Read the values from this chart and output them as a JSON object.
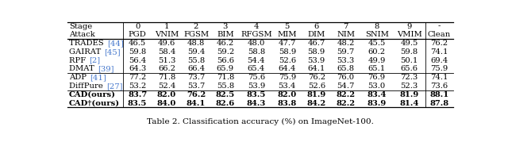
{
  "title": "Table 2. Classification accuracy (%) on ImageNet-100.",
  "header_row1": [
    "Stage",
    "0",
    "1",
    "2",
    "3",
    "4",
    "5",
    "6",
    "7",
    "8",
    "9",
    "-"
  ],
  "header_row2": [
    "Attack",
    "PGD",
    "VNIM",
    "FGSM",
    "BIM",
    "RFGSM",
    "MIM",
    "DIM",
    "NIM",
    "SNIM",
    "VMIM",
    "Clean"
  ],
  "rows": [
    [
      "TRADES [44]",
      "46.5",
      "49.6",
      "48.8",
      "46.2",
      "48.0",
      "47.7",
      "46.7",
      "48.2",
      "45.5",
      "49.5",
      "76.2"
    ],
    [
      "GAIRAT [45]",
      "59.8",
      "58.4",
      "59.4",
      "59.2",
      "58.8",
      "58.9",
      "58.9",
      "59.7",
      "60.2",
      "59.8",
      "74.1"
    ],
    [
      "RPF [2]",
      "56.4",
      "51.3",
      "55.8",
      "56.6",
      "54.4",
      "52.6",
      "53.9",
      "53.3",
      "49.9",
      "50.1",
      "69.4"
    ],
    [
      "DMAT [39]",
      "64.3",
      "66.2",
      "66.4",
      "65.9",
      "65.4",
      "64.4",
      "64.1",
      "65.8",
      "65.1",
      "65.6",
      "75.9"
    ],
    [
      "ADP [41]",
      "77.2",
      "71.8",
      "73.7",
      "71.8",
      "75.6",
      "75.9",
      "76.2",
      "76.0",
      "76.9",
      "72.3",
      "74.1"
    ],
    [
      "DiffPure [27]",
      "53.2",
      "52.4",
      "53.7",
      "55.8",
      "53.9",
      "53.4",
      "52.6",
      "54.7",
      "53.0",
      "52.3",
      "73.6"
    ],
    [
      "CAD(ours)",
      "83.7",
      "82.0",
      "76.2",
      "82.5",
      "83.5",
      "82.0",
      "81.9",
      "82.2",
      "83.4",
      "81.9",
      "88.1"
    ],
    [
      "CAD†(ours)",
      "83.5",
      "84.0",
      "84.1",
      "82.6",
      "84.3",
      "83.8",
      "84.2",
      "82.2",
      "83.9",
      "81.4",
      "87.8"
    ]
  ],
  "bold_rows": [
    6,
    7
  ],
  "citation_color": "#4477cc",
  "title_fontsize": 7.5,
  "cell_fontsize": 7.2,
  "col_widths_rel": [
    1.7,
    0.9,
    0.9,
    0.9,
    0.9,
    1.0,
    0.9,
    0.9,
    0.9,
    1.0,
    1.0,
    0.85
  ]
}
